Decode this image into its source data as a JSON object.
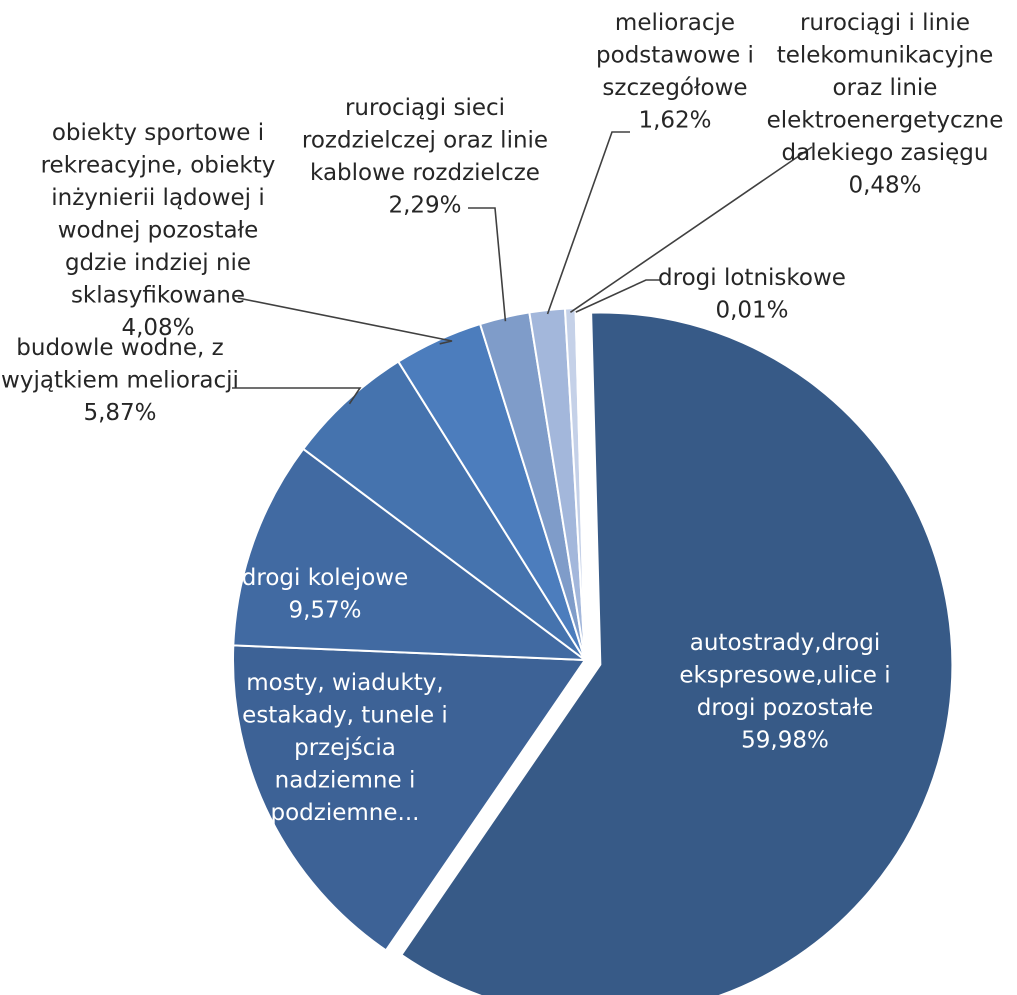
{
  "chart_data": {
    "type": "pie",
    "title": "",
    "slices": [
      {
        "label": [
          "autostrady,drogi",
          "ekspresowe,ulice i",
          "drogi pozostałe"
        ],
        "value_label": "59,98%",
        "value": 59.98,
        "color": "#375a87"
      },
      {
        "label": [
          "mosty, wiadukty,",
          "estakady, tunele i",
          "przejścia",
          "nadziemne i",
          "podziemne..."
        ],
        "value_label": "",
        "value": 16.1,
        "color": "#3d6296"
      },
      {
        "label": [
          "drogi kolejowe"
        ],
        "value_label": "9,57%",
        "value": 9.57,
        "color": "#416aa2"
      },
      {
        "label": [
          "budowle wodne, z",
          "wyjątkiem melioracji"
        ],
        "value_label": "5,87%",
        "value": 5.87,
        "color": "#4573ae"
      },
      {
        "label": [
          "obiekty sportowe i",
          "rekreacyjne, obiekty",
          "inżynierii lądowej i",
          "wodnej pozostałe",
          "gdzie indziej nie",
          "sklasyfikowane"
        ],
        "value_label": "4,08%",
        "value": 4.08,
        "color": "#4c7dbd"
      },
      {
        "label": [
          "rurociągi sieci",
          "rozdzielczej oraz linie",
          "kablowe rozdzielcze"
        ],
        "value_label": "2,29%",
        "value": 2.29,
        "color": "#7f9cc9"
      },
      {
        "label": [
          "melioracje",
          "podstawowe i",
          "szczegółowe"
        ],
        "value_label": "1,62%",
        "value": 1.62,
        "color": "#a3b7db"
      },
      {
        "label": [
          "rurociągi i linie",
          "telekomunikacyjne",
          "oraz linie",
          "elektroenergetyczne",
          "dalekiego zasięgu"
        ],
        "value_label": "0,48%",
        "value": 0.48,
        "color": "#c5d1e8"
      },
      {
        "label": [
          "drogi lotniskowe"
        ],
        "value_label": "0,01%",
        "value": 0.01,
        "color": "#dbe2f0"
      }
    ]
  }
}
